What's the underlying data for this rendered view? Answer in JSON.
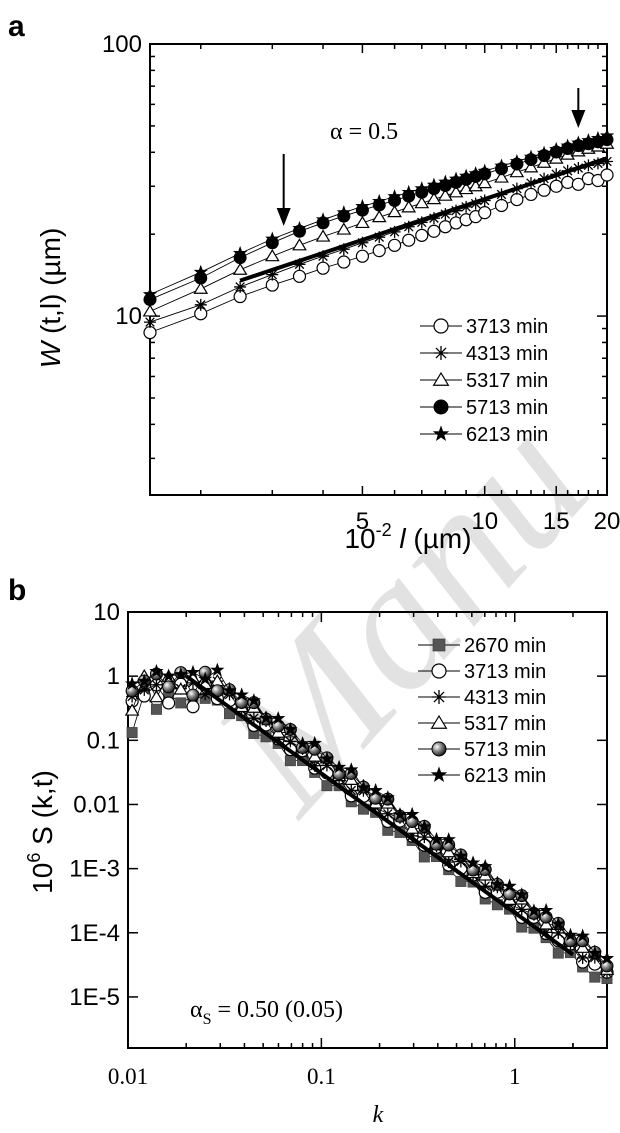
{
  "chart_data": [
    {
      "panel_label": "a",
      "type": "scatter",
      "x_scale": "log",
      "y_scale": "log",
      "xlim": [
        1.5,
        20
      ],
      "ylim": [
        2.2,
        100
      ],
      "x_ticks": [
        5,
        10,
        15,
        20
      ],
      "y_ticks": [
        10,
        100
      ],
      "xlabel_pre": "10",
      "xlabel_sup": "-2",
      "xlabel_mid": " l ",
      "xlabel_unit": "(µm)",
      "ylabel_italic": "W",
      "ylabel_rest": " (t,l) (µm)",
      "annotation": "α = 0.5",
      "arrows_x": [
        3.2,
        17.0
      ],
      "fit_line": {
        "x": [
          2.5,
          20
        ],
        "y": [
          13.5,
          38
        ]
      },
      "series": [
        {
          "name": "3713 min",
          "marker": "open-circle",
          "x": [
            1.5,
            2.0,
            2.5,
            3.0,
            3.5,
            4.0,
            4.5,
            5.0,
            5.5,
            6.0,
            6.5,
            7.0,
            7.5,
            8.0,
            8.5,
            9.0,
            9.5,
            10.0,
            11.0,
            12.0,
            13.0,
            14.0,
            15.0,
            16.0,
            17.0,
            18.0,
            19.0,
            20.0
          ],
          "y": [
            8.7,
            10.2,
            11.8,
            13.0,
            14.0,
            15.0,
            15.8,
            16.6,
            17.4,
            18.2,
            19.0,
            19.8,
            20.5,
            21.3,
            22.0,
            22.6,
            23.2,
            24.0,
            25.5,
            26.8,
            28.0,
            29.0,
            30.0,
            31.0,
            30.5,
            32.0,
            31.5,
            33.0
          ]
        },
        {
          "name": "4313 min",
          "marker": "asterisk",
          "x": [
            1.5,
            2.0,
            2.5,
            3.0,
            3.5,
            4.0,
            4.5,
            5.0,
            5.5,
            6.0,
            6.5,
            7.0,
            7.5,
            8.0,
            8.5,
            9.0,
            9.5,
            10.0,
            11.0,
            12.0,
            13.0,
            14.0,
            15.0,
            16.0,
            17.0,
            18.0,
            19.0,
            20.0
          ],
          "y": [
            9.5,
            11.0,
            12.8,
            14.2,
            15.5,
            16.6,
            17.6,
            18.6,
            19.5,
            20.4,
            21.3,
            22.1,
            22.9,
            23.7,
            24.4,
            25.2,
            25.9,
            26.6,
            28.0,
            29.4,
            30.8,
            32.0,
            33.2,
            34.2,
            35.0,
            35.8,
            36.4,
            37.0
          ]
        },
        {
          "name": "5317 min",
          "marker": "open-triangle",
          "x": [
            1.5,
            2.0,
            2.5,
            3.0,
            3.5,
            4.0,
            4.5,
            5.0,
            5.5,
            6.0,
            6.5,
            7.0,
            7.5,
            8.0,
            8.5,
            9.0,
            9.5,
            10.0,
            11.0,
            12.0,
            13.0,
            14.0,
            15.0,
            16.0,
            17.0,
            18.0,
            19.0,
            20.0
          ],
          "y": [
            10.4,
            12.6,
            14.8,
            16.6,
            18.2,
            19.6,
            20.8,
            22.0,
            23.1,
            24.1,
            25.1,
            26.0,
            26.9,
            27.7,
            28.5,
            29.3,
            30.0,
            30.8,
            32.3,
            33.8,
            35.2,
            36.6,
            37.9,
            39.2,
            40.3,
            41.2,
            42.0,
            43.0
          ]
        },
        {
          "name": "5713 min",
          "marker": "filled-circle",
          "x": [
            1.5,
            2.0,
            2.5,
            3.0,
            3.5,
            4.0,
            4.5,
            5.0,
            5.5,
            6.0,
            6.5,
            7.0,
            7.5,
            8.0,
            8.5,
            9.0,
            9.5,
            10.0,
            11.0,
            12.0,
            13.0,
            14.0,
            15.0,
            16.0,
            17.0,
            18.0,
            19.0,
            20.0
          ],
          "y": [
            11.5,
            13.8,
            16.4,
            18.6,
            20.5,
            22.0,
            23.3,
            24.5,
            25.6,
            26.6,
            27.6,
            28.5,
            29.4,
            30.2,
            31.0,
            31.8,
            32.6,
            33.3,
            34.8,
            36.2,
            37.6,
            38.9,
            40.1,
            41.3,
            42.3,
            43.0,
            43.7,
            44.5
          ]
        },
        {
          "name": "6213 min",
          "marker": "filled-star",
          "x": [
            1.5,
            2.0,
            2.5,
            3.0,
            3.5,
            4.0,
            4.5,
            5.0,
            5.5,
            6.0,
            6.5,
            7.0,
            7.5,
            8.0,
            8.5,
            9.0,
            9.5,
            10.0,
            11.0,
            12.0,
            13.0,
            14.0,
            15.0,
            16.0,
            17.0,
            18.0,
            19.0,
            20.0
          ],
          "y": [
            12.0,
            14.5,
            17.0,
            19.2,
            21.0,
            22.6,
            24.0,
            25.3,
            26.4,
            27.5,
            28.5,
            29.4,
            30.3,
            31.1,
            31.9,
            32.7,
            33.4,
            34.1,
            35.6,
            37.0,
            38.4,
            39.7,
            41.0,
            42.2,
            43.3,
            44.2,
            45.0,
            46.0
          ]
        }
      ]
    },
    {
      "panel_label": "b",
      "type": "scatter",
      "x_scale": "log",
      "y_scale": "log",
      "xlim": [
        0.01,
        3
      ],
      "ylim": [
        1.6e-06,
        10
      ],
      "x_ticks": [
        "0.01",
        "0.1",
        "1"
      ],
      "y_ticks": [
        "10",
        "1",
        "0.1",
        "0.01",
        "1E-3",
        "1E-4",
        "1E-5"
      ],
      "xlabel": "k",
      "ylabel_pre": "10",
      "ylabel_sup": "6",
      "ylabel_rest": " S (k,t)",
      "annotation_alpha": "α",
      "annotation_sub": "S",
      "annotation_rest": " = 0.50  (0.05)",
      "fit_line": {
        "x": [
          0.02,
          2.0
        ],
        "y": [
          1.0,
          4.57e-05
        ]
      },
      "series": [
        {
          "name": "2670 min",
          "marker": "filled-square-gray",
          "base": 0.36,
          "offset": 0.55
        },
        {
          "name": "3713 min",
          "marker": "open-circle",
          "base": 0.49,
          "offset": 0.75
        },
        {
          "name": "4313 min",
          "marker": "asterisk",
          "base": 0.56,
          "offset": 0.85
        },
        {
          "name": "5317 min",
          "marker": "open-triangle",
          "base": 0.7,
          "offset": 1.0
        },
        {
          "name": "5713 min",
          "marker": "shaded-sphere",
          "base": 0.78,
          "offset": 1.15
        },
        {
          "name": "6213 min",
          "marker": "filled-star",
          "base": 0.88,
          "offset": 1.3
        }
      ]
    }
  ]
}
